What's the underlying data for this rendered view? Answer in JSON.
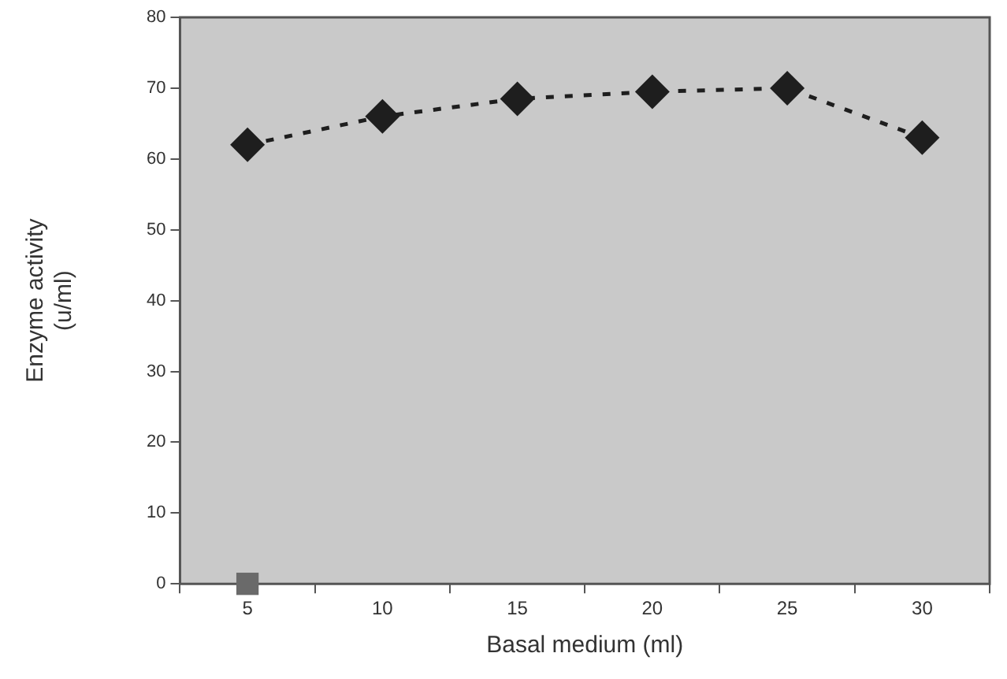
{
  "chart_data": {
    "type": "line",
    "xlabel": "Basal medium (ml)",
    "ylabel": "Enzyme activity\n(u/ml)",
    "categories": [
      "5",
      "10",
      "15",
      "20",
      "25",
      "30"
    ],
    "series": [
      {
        "color": "#1e1e1e",
        "marker": "diamond",
        "line_style": "dashed",
        "values": [
          62,
          66,
          68.5,
          69.5,
          70,
          63
        ]
      },
      {
        "type": "scatter",
        "color": "#6a6a6a",
        "marker": "square",
        "values": [
          0,
          null,
          null,
          null,
          null,
          null
        ]
      }
    ],
    "ylim": [
      0,
      80
    ],
    "yticks": [
      0,
      10,
      20,
      30,
      40,
      50,
      60,
      70,
      80
    ],
    "grid": false,
    "legend": false
  }
}
